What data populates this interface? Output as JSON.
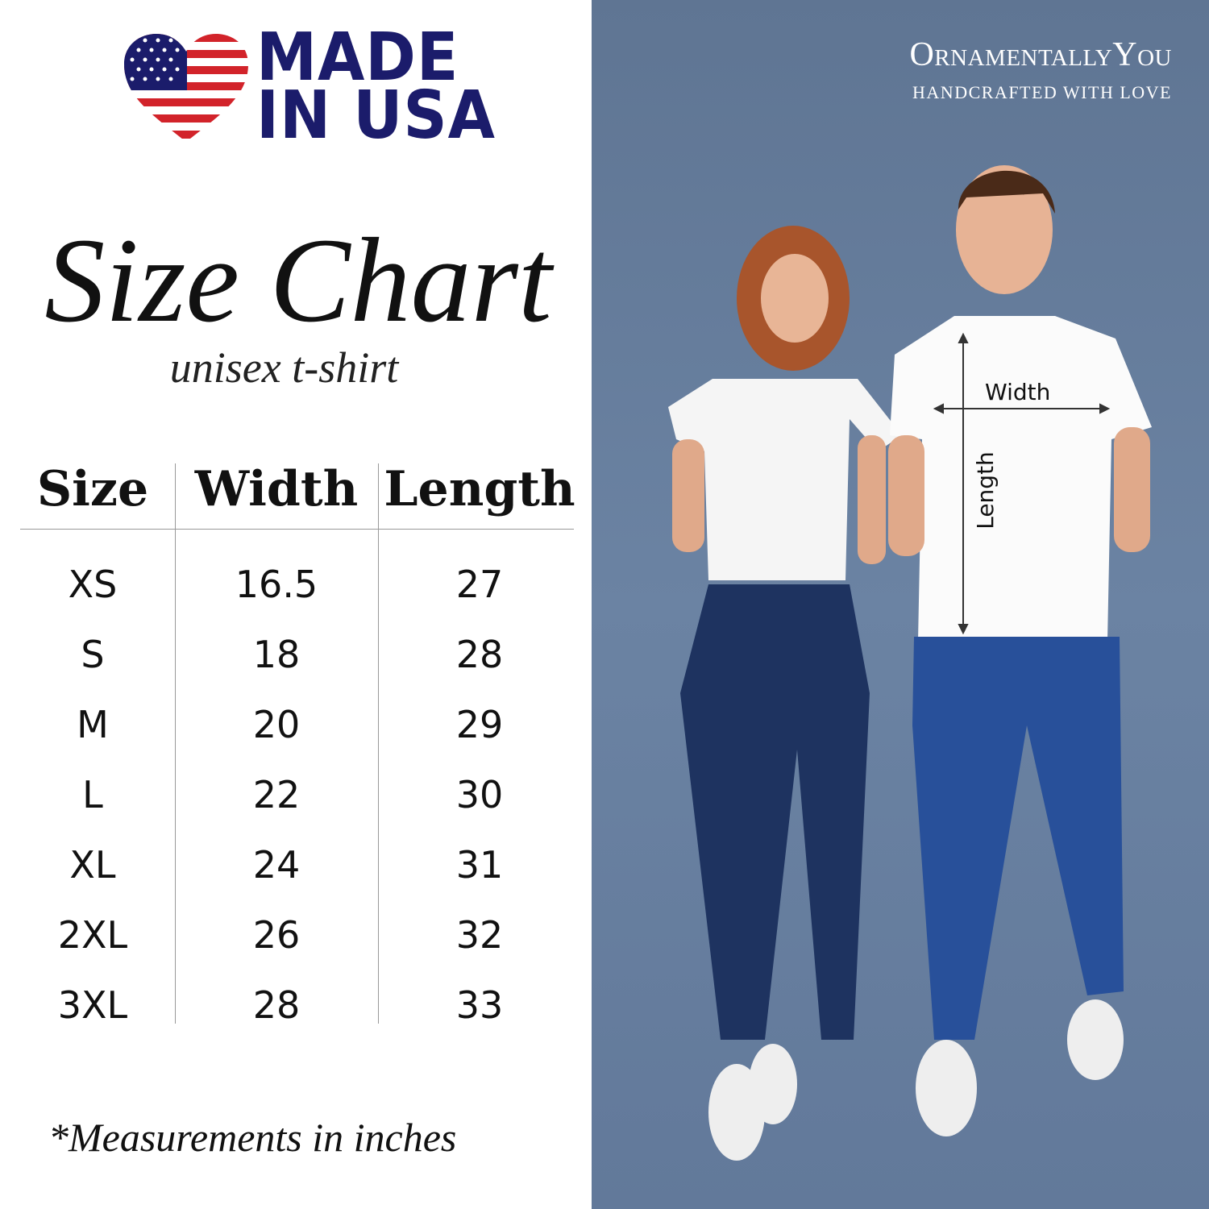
{
  "logo": {
    "line1": "MADE",
    "line2": "IN USA",
    "flag_colors": {
      "red": "#d2232a",
      "blue": "#1b1c6b",
      "white": "#ffffff"
    }
  },
  "title": "Size Chart",
  "subtitle": "unisex t-shirt",
  "table": {
    "headers": [
      "Size",
      "Width",
      "Length"
    ],
    "rows": [
      [
        "XS",
        "16.5",
        "27"
      ],
      [
        "S",
        "18",
        "28"
      ],
      [
        "M",
        "20",
        "29"
      ],
      [
        "L",
        "22",
        "30"
      ],
      [
        "XL",
        "24",
        "31"
      ],
      [
        "2XL",
        "26",
        "32"
      ],
      [
        "3XL",
        "28",
        "33"
      ]
    ]
  },
  "note": "*Measurements in inches",
  "brand": {
    "name": "OrnamentallyYou",
    "tagline": "HANDCRAFTED WITH LOVE"
  },
  "photo": {
    "width_label": "Width",
    "length_label": "Length",
    "background": "#6b83a3"
  }
}
